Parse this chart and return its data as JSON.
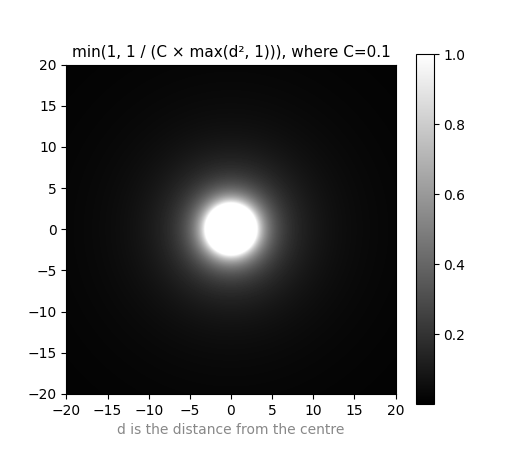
{
  "title": "min(1, 1 / (C × max(d², 1))), where C=0.1",
  "xlabel": "d is the distance from the centre",
  "xlabel_color": "#888888",
  "C": 0.1,
  "x_range": [
    -20,
    20
  ],
  "y_range": [
    -20,
    20
  ],
  "resolution": 500,
  "cmap": "gray",
  "vmin": 0.0,
  "vmax": 1.0,
  "colorbar_ticks": [
    0.2,
    0.4,
    0.6,
    0.8,
    1.0
  ],
  "xticks": [
    -20,
    -15,
    -10,
    -5,
    0,
    5,
    10,
    15,
    20
  ],
  "yticks": [
    -20,
    -15,
    -10,
    -5,
    0,
    5,
    10,
    15,
    20
  ],
  "figsize": [
    5.31,
    4.54
  ],
  "dpi": 100
}
